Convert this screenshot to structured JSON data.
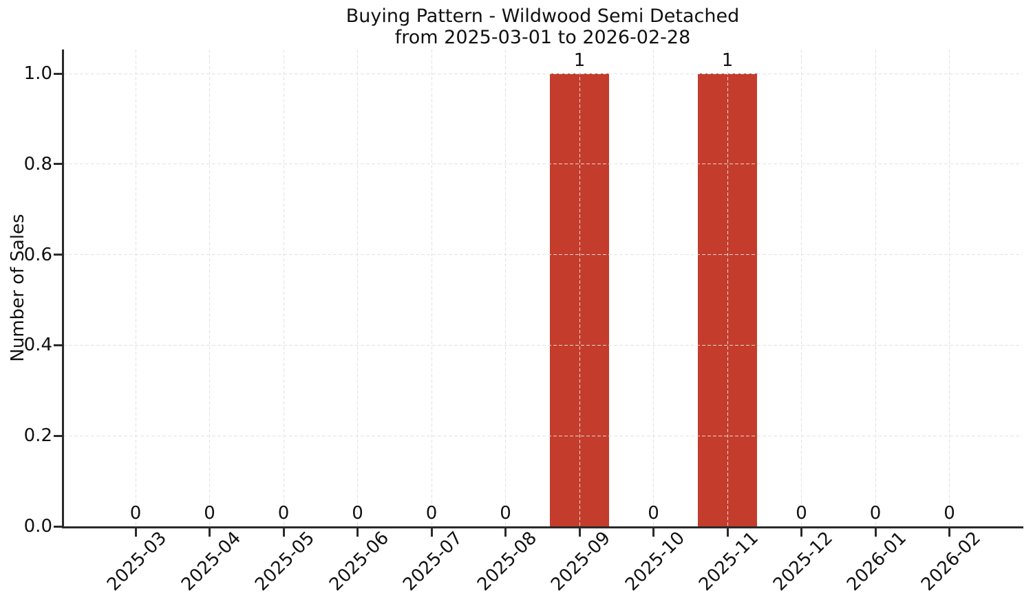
{
  "chart_data": {
    "type": "bar",
    "title": "Buying Pattern - Wildwood Semi Detached",
    "subtitle": "from 2025-03-01 to 2026-02-28",
    "ylabel": "Number of Sales",
    "xlabel": "",
    "categories": [
      "2025-03",
      "2025-04",
      "2025-05",
      "2025-06",
      "2025-07",
      "2025-08",
      "2025-09",
      "2025-10",
      "2025-11",
      "2025-12",
      "2026-01",
      "2026-02"
    ],
    "values": [
      0,
      0,
      0,
      0,
      0,
      0,
      1,
      0,
      1,
      0,
      0,
      0
    ],
    "ytick_labels": [
      "0.0",
      "0.2",
      "0.4",
      "0.6",
      "0.8",
      "1.0"
    ],
    "ytick_values": [
      0,
      0.2,
      0.4,
      0.6,
      0.8,
      1.0
    ],
    "ylim": [
      0,
      1.05
    ],
    "grid": true,
    "grid_style": "dashed",
    "legend_position": "none",
    "value_labels_shown": true,
    "bar_color": "#c43c2b",
    "axis_color": "#2a2a2a",
    "background_color": "#ffffff"
  }
}
